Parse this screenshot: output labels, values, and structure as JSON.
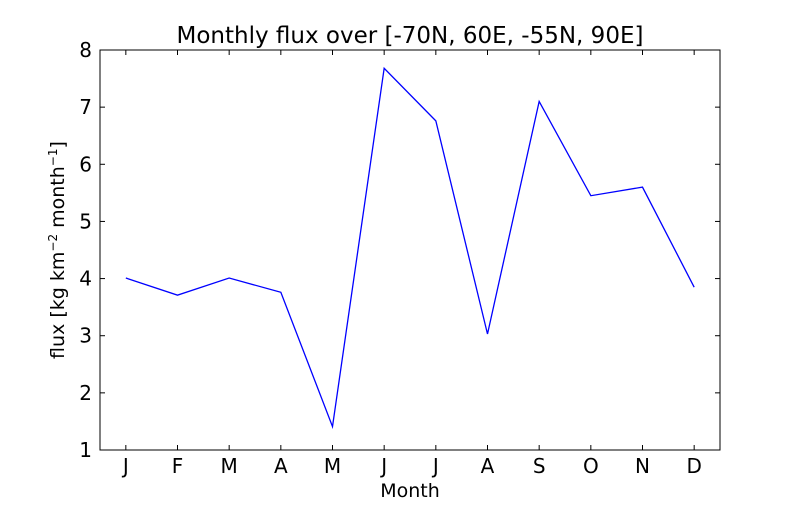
{
  "chart_data": {
    "type": "line",
    "title": "Monthly flux over [-70N, 60E, -55N, 90E]",
    "xlabel": "Month",
    "ylabel": {
      "base": "flux [kg km",
      "sup1": "−2",
      "mid": " month",
      "sup2": "−1",
      "end": "]"
    },
    "categories": [
      "J",
      "F",
      "M",
      "A",
      "M",
      "J",
      "J",
      "A",
      "S",
      "O",
      "N",
      "D"
    ],
    "series": [
      {
        "values": [
          4.01,
          3.71,
          4.01,
          3.76,
          1.41,
          7.68,
          6.76,
          3.03,
          7.1,
          5.45,
          5.6,
          3.85
        ],
        "color": "#0000ff"
      }
    ],
    "ylim": [
      1,
      8
    ],
    "yticks": [
      1,
      2,
      3,
      4,
      5,
      6,
      7,
      8
    ],
    "xlim": [
      -0.5,
      11.5
    ],
    "grid": false,
    "legend": "none"
  }
}
